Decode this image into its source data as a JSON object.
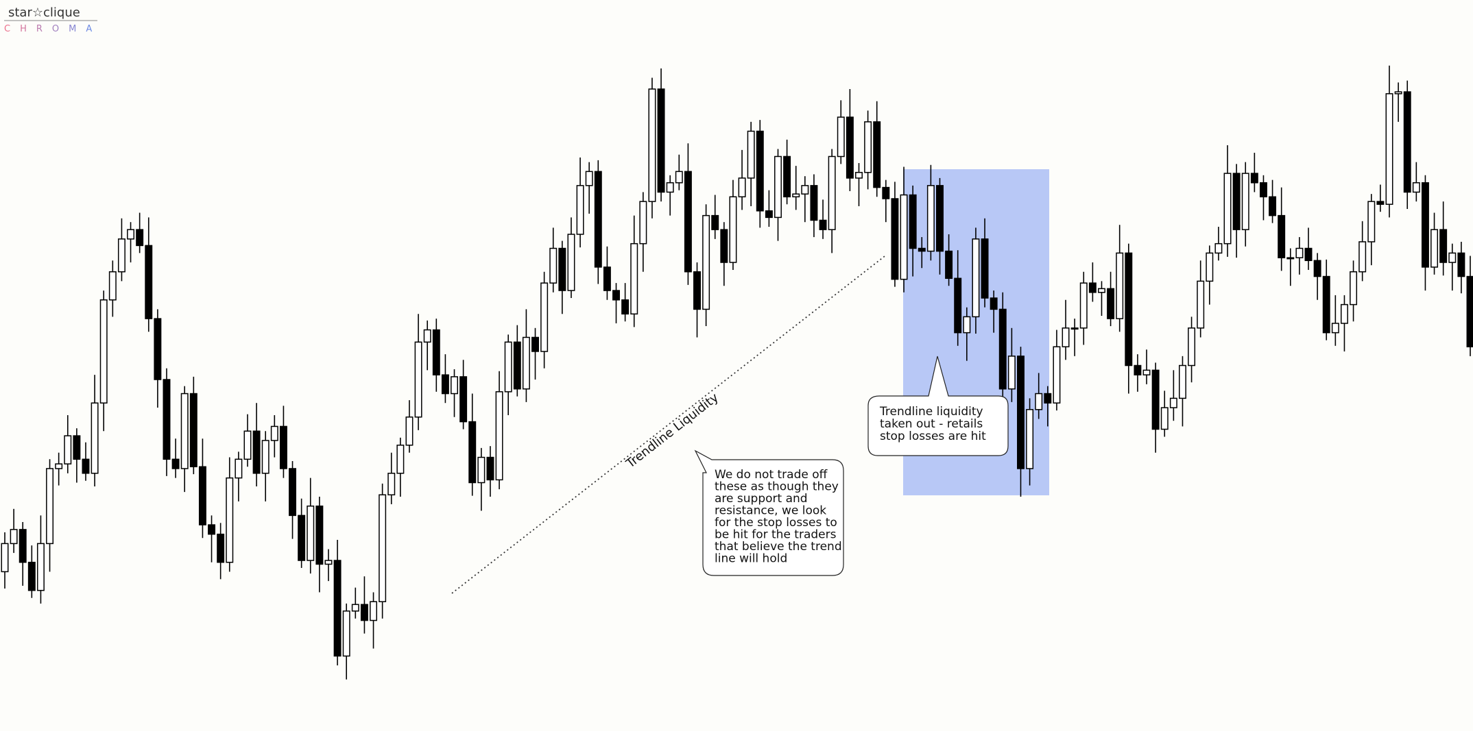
{
  "logo": {
    "name": "star☆clique",
    "sub": "CHROMA"
  },
  "chart_data": {
    "type": "candlestick",
    "ylim": [
      0,
      780
    ],
    "up_color": "#ffffff",
    "down_color": "#000000",
    "highlight_color": "#b8c8f6",
    "open": [
      170,
      200,
      215,
      180,
      150,
      200,
      280,
      285,
      315,
      290,
      275,
      350,
      460,
      490,
      525,
      535,
      518,
      440,
      375,
      290,
      280,
      360,
      282,
      220,
      210,
      180,
      270,
      290,
      320,
      275,
      310,
      325,
      280,
      230,
      182,
      240,
      178,
      182,
      80,
      128,
      135,
      118,
      138,
      252,
      275,
      305,
      335,
      415,
      428,
      380,
      360,
      378,
      330,
      265,
      292,
      268,
      362,
      415,
      365,
      420,
      405,
      478,
      515,
      470,
      530,
      582,
      597,
      495,
      470,
      460,
      445,
      520,
      565,
      685,
      575,
      585,
      597,
      490,
      450,
      550,
      535,
      500,
      570,
      590,
      640,
      555,
      548,
      613,
      570,
      573,
      582,
      545,
      535,
      613,
      655,
      590,
      596,
      650,
      580,
      568,
      482,
      572,
      515,
      512,
      582,
      512,
      483,
      425,
      442,
      525,
      462,
      450,
      365,
      400,
      280,
      343,
      360,
      350,
      410,
      430,
      430,
      478,
      468,
      472,
      440,
      510,
      390,
      380,
      385,
      322,
      345,
      355,
      390,
      430,
      480,
      510,
      520,
      595,
      535,
      595,
      585,
      570,
      550,
      505,
      505,
      515,
      502,
      485,
      425,
      435,
      455,
      490,
      522,
      565,
      562,
      680,
      682,
      575,
      585,
      495,
      535,
      500,
      510,
      485
    ],
    "high": [
      212,
      237,
      223,
      198,
      230,
      290,
      297,
      337,
      323,
      308,
      380,
      470,
      502,
      547,
      543,
      553,
      548,
      450,
      387,
      312,
      368,
      378,
      312,
      230,
      222,
      292,
      298,
      338,
      350,
      320,
      337,
      347,
      288,
      248,
      270,
      250,
      194,
      204,
      136,
      153,
      165,
      148,
      264,
      297,
      313,
      353,
      445,
      438,
      440,
      402,
      386,
      396,
      360,
      302,
      304,
      384,
      423,
      433,
      450,
      430,
      490,
      537,
      523,
      548,
      612,
      607,
      609,
      517,
      478,
      478,
      550,
      575,
      697,
      707,
      593,
      615,
      627,
      500,
      562,
      572,
      543,
      588,
      620,
      650,
      652,
      577,
      621,
      631,
      603,
      592,
      594,
      567,
      621,
      673,
      685,
      606,
      662,
      672,
      588,
      586,
      602,
      582,
      527,
      604,
      590,
      530,
      513,
      452,
      537,
      547,
      470,
      468,
      430,
      410,
      355,
      382,
      368,
      428,
      460,
      440,
      490,
      500,
      480,
      490,
      540,
      520,
      402,
      407,
      393,
      363,
      385,
      400,
      442,
      502,
      518,
      538,
      625,
      605,
      607,
      617,
      593,
      588,
      580,
      515,
      527,
      537,
      510,
      503,
      465,
      465,
      502,
      544,
      573,
      583,
      710,
      692,
      694,
      607,
      593,
      553,
      565,
      520,
      522,
      507
    ],
    "low": [
      152,
      190,
      155,
      142,
      136,
      170,
      262,
      275,
      265,
      267,
      261,
      320,
      442,
      480,
      500,
      510,
      426,
      345,
      272,
      270,
      255,
      274,
      206,
      180,
      162,
      170,
      245,
      282,
      261,
      245,
      292,
      270,
      205,
      174,
      168,
      148,
      160,
      70,
      55,
      120,
      104,
      88,
      120,
      242,
      250,
      297,
      321,
      385,
      362,
      350,
      335,
      322,
      251,
      235,
      250,
      258,
      337,
      357,
      351,
      375,
      387,
      468,
      445,
      462,
      516,
      552,
      477,
      460,
      435,
      437,
      431,
      490,
      547,
      565,
      550,
      577,
      476,
      420,
      432,
      525,
      475,
      492,
      556,
      560,
      537,
      538,
      523,
      562,
      556,
      543,
      527,
      525,
      510,
      605,
      576,
      560,
      578,
      570,
      543,
      474,
      468,
      485,
      494,
      502,
      487,
      475,
      411,
      395,
      424,
      452,
      425,
      357,
      351,
      250,
      262,
      333,
      325,
      342,
      396,
      400,
      412,
      458,
      443,
      432,
      426,
      360,
      362,
      370,
      297,
      314,
      331,
      325,
      372,
      420,
      455,
      502,
      506,
      505,
      517,
      575,
      545,
      542,
      491,
      475,
      487,
      492,
      460,
      417,
      411,
      405,
      437,
      480,
      497,
      554,
      548,
      650,
      557,
      565,
      470,
      487,
      486,
      470,
      467,
      400
    ],
    "close": [
      200,
      215,
      180,
      150,
      200,
      280,
      285,
      315,
      290,
      275,
      350,
      460,
      490,
      525,
      535,
      518,
      440,
      375,
      290,
      280,
      360,
      282,
      220,
      210,
      180,
      270,
      290,
      320,
      275,
      310,
      325,
      280,
      230,
      182,
      240,
      178,
      182,
      80,
      128,
      135,
      118,
      138,
      252,
      275,
      305,
      335,
      415,
      428,
      380,
      360,
      378,
      330,
      265,
      292,
      268,
      362,
      415,
      365,
      420,
      405,
      478,
      515,
      470,
      530,
      582,
      597,
      495,
      470,
      460,
      445,
      520,
      565,
      685,
      575,
      585,
      597,
      490,
      450,
      550,
      535,
      500,
      570,
      590,
      640,
      555,
      548,
      613,
      570,
      573,
      582,
      545,
      535,
      613,
      655,
      590,
      596,
      650,
      580,
      568,
      482,
      572,
      515,
      512,
      582,
      512,
      483,
      425,
      442,
      525,
      462,
      450,
      365,
      400,
      280,
      343,
      360,
      350,
      410,
      430,
      430,
      478,
      468,
      472,
      440,
      510,
      390,
      380,
      385,
      322,
      345,
      355,
      390,
      430,
      480,
      510,
      520,
      595,
      535,
      595,
      585,
      570,
      550,
      505,
      505,
      515,
      502,
      485,
      425,
      435,
      455,
      490,
      522,
      565,
      562,
      680,
      682,
      575,
      585,
      495,
      535,
      500,
      510,
      485,
      410
    ],
    "annotations": [
      {
        "text": "Trendline Liquidity"
      },
      {
        "lines": [
          "Trendline liquidity",
          "taken out - retails",
          "stop losses are hit"
        ]
      },
      {
        "lines": [
          "We do not trade off",
          "these as though they",
          "are support and",
          "resistance, we look",
          "for the stop losses to",
          "be hit for the traders",
          "that believe the trend",
          "line will hold"
        ]
      }
    ]
  }
}
